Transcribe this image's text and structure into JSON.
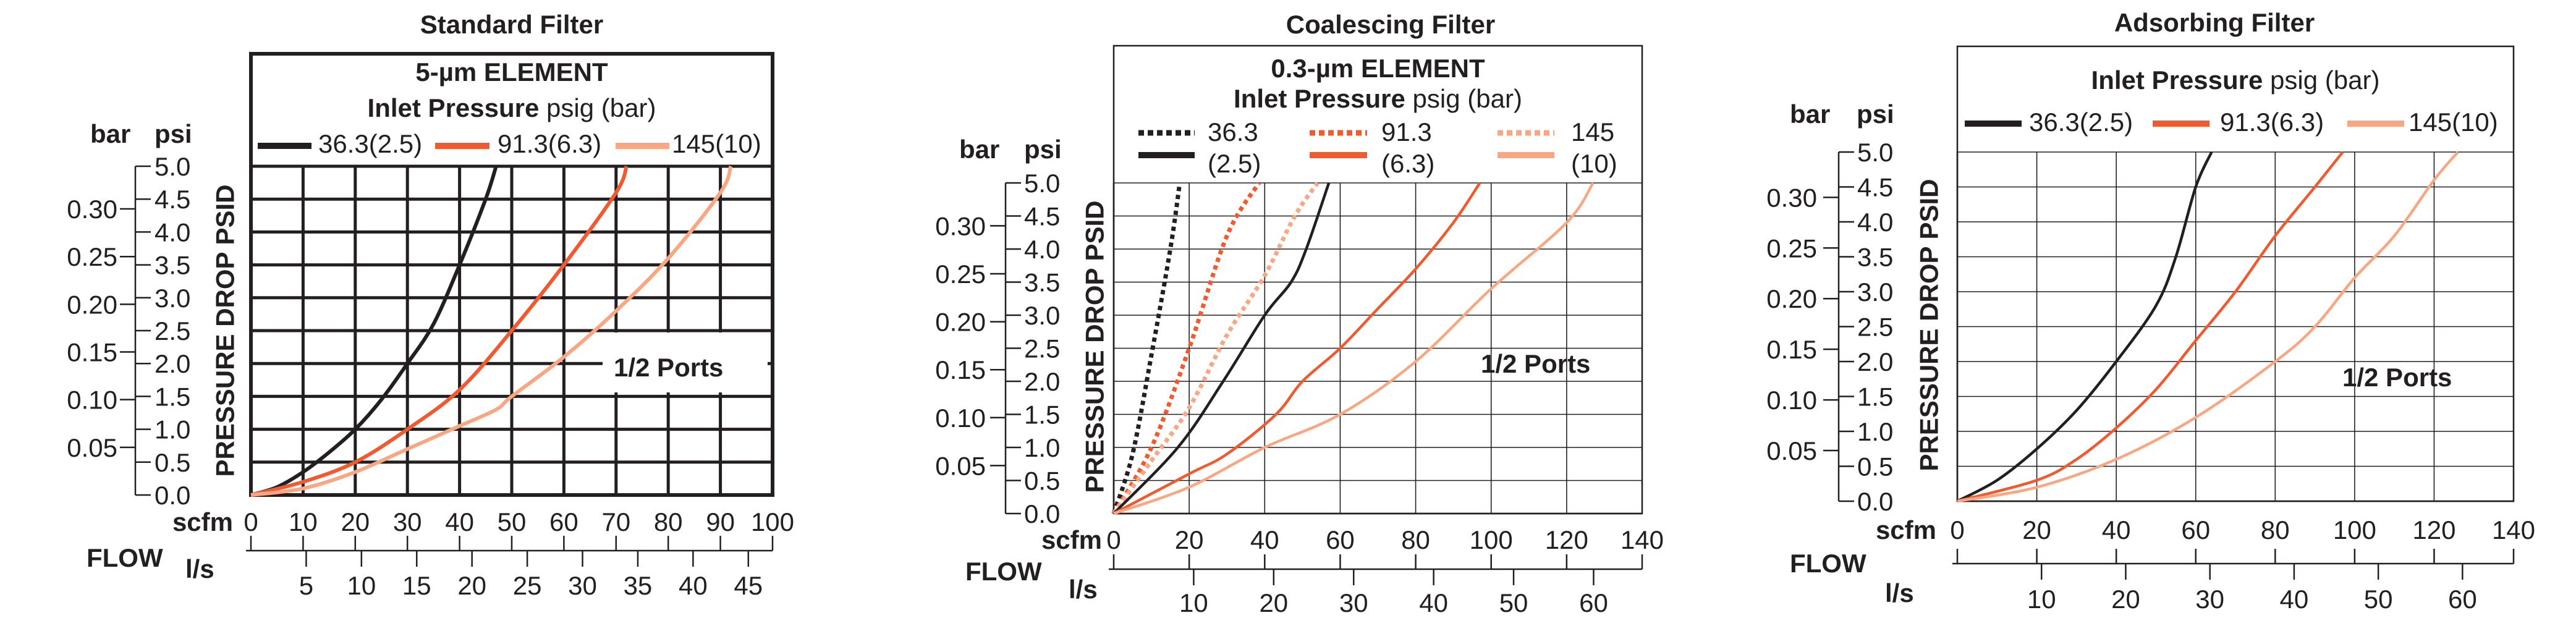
{
  "chart_data": [
    {
      "type": "line",
      "title": "Standard Filter",
      "element": "5-µm ELEMENT",
      "legend_title_bold": "Inlet Pressure",
      "legend_title_rest": "psig (bar)",
      "legend": [
        {
          "label": "36.3(2.5)",
          "color": "#231f20"
        },
        {
          "label": "91.3(6.3)",
          "color": "#f15a2f"
        },
        {
          "label": "145(10)",
          "color": "#f8a782"
        }
      ],
      "ylabel": "PRESSURE DROP PSID",
      "y_unit_primary": "psi",
      "y_unit_secondary": "bar",
      "xlabel": "FLOW",
      "x_unit_primary": "scfm",
      "x_unit_secondary": "l/s",
      "xlim": [
        0,
        100
      ],
      "ylim": [
        0,
        5
      ],
      "grid": true,
      "psi_ticks": [
        "0.0",
        "0.5",
        "1.0",
        "1.5",
        "2.0",
        "2.5",
        "3.0",
        "3.5",
        "4.0",
        "4.5",
        "5.0"
      ],
      "bar_ticks": [
        "0.05",
        "0.10",
        "0.15",
        "0.20",
        "0.25",
        "0.30"
      ],
      "scfm_ticks": [
        "0",
        "10",
        "20",
        "30",
        "40",
        "50",
        "60",
        "70",
        "80",
        "90",
        "100"
      ],
      "ls_ticks": [
        "5",
        "10",
        "15",
        "20",
        "25",
        "30",
        "35",
        "40",
        "45"
      ],
      "annotation": "1/2 Ports",
      "series": [
        {
          "legend": 0,
          "style": "solid",
          "x": [
            0,
            5,
            10,
            15,
            20,
            25,
            30,
            35,
            40,
            45,
            47
          ],
          "y": [
            0,
            0.12,
            0.35,
            0.65,
            1.0,
            1.45,
            2.0,
            2.6,
            3.5,
            4.5,
            5.0
          ]
        },
        {
          "legend": 1,
          "style": "solid",
          "x": [
            0,
            10,
            20,
            30,
            40,
            50,
            60,
            70,
            72
          ],
          "y": [
            0,
            0.2,
            0.5,
            1.0,
            1.6,
            2.5,
            3.5,
            4.6,
            5.0
          ]
        },
        {
          "legend": 2,
          "style": "solid",
          "x": [
            0,
            10,
            20,
            30,
            40,
            47,
            50,
            60,
            70,
            80,
            90,
            92
          ],
          "y": [
            0,
            0.1,
            0.35,
            0.7,
            1.05,
            1.3,
            1.5,
            2.1,
            2.8,
            3.6,
            4.6,
            5.0
          ]
        }
      ]
    },
    {
      "type": "line",
      "title": "Coalescing Filter",
      "element": "0.3-µm ELEMENT",
      "legend_title_bold": "Inlet Pressure",
      "legend_title_rest": "psig (bar)",
      "legend": [
        {
          "label_lines": [
            "36.3",
            "(2.5)"
          ],
          "color": "#231f20"
        },
        {
          "label_lines": [
            "91.3",
            "(6.3)"
          ],
          "color": "#f15a2f"
        },
        {
          "label_lines": [
            "145",
            "(10)"
          ],
          "color": "#f8a782"
        }
      ],
      "ylabel": "PRESSURE DROP PSID",
      "y_unit_primary": "psi",
      "y_unit_secondary": "bar",
      "xlabel": "FLOW",
      "x_unit_primary": "scfm",
      "x_unit_secondary": "l/s",
      "xlim": [
        0,
        140
      ],
      "ylim": [
        0,
        5
      ],
      "grid": true,
      "psi_ticks": [
        "0.0",
        "0.5",
        "1.0",
        "1.5",
        "2.0",
        "2.5",
        "3.0",
        "3.5",
        "4.0",
        "4.5",
        "5.0"
      ],
      "bar_ticks": [
        "0.05",
        "0.10",
        "0.15",
        "0.20",
        "0.25",
        "0.30"
      ],
      "scfm_ticks": [
        "0",
        "20",
        "40",
        "60",
        "80",
        "100",
        "120",
        "140"
      ],
      "ls_ticks": [
        "10",
        "20",
        "30",
        "40",
        "50",
        "60"
      ],
      "annotation": "1/2 Ports",
      "series": [
        {
          "legend": 0,
          "style": "dotted",
          "x": [
            0,
            5,
            10,
            15,
            17.5
          ],
          "y": [
            0,
            0.9,
            2.4,
            4.0,
            5.0
          ]
        },
        {
          "legend": 1,
          "style": "dotted",
          "x": [
            0,
            10,
            20,
            30,
            38.5
          ],
          "y": [
            0,
            1.0,
            2.5,
            4.2,
            5.0
          ]
        },
        {
          "legend": 2,
          "style": "dotted",
          "x": [
            0,
            10,
            20,
            30,
            40,
            48,
            54
          ],
          "y": [
            0,
            0.8,
            1.6,
            2.7,
            3.6,
            4.5,
            5.0
          ]
        },
        {
          "legend": 0,
          "style": "solid",
          "x": [
            0,
            17,
            29,
            40,
            47,
            51,
            57
          ],
          "y": [
            0,
            1.0,
            2.0,
            3.0,
            3.5,
            4.0,
            5.0
          ]
        },
        {
          "legend": 1,
          "style": "solid",
          "x": [
            0,
            20,
            30,
            43,
            50,
            60,
            70,
            80,
            90,
            97
          ],
          "y": [
            0,
            0.6,
            0.9,
            1.5,
            2.0,
            2.5,
            3.1,
            3.7,
            4.4,
            5.0
          ]
        },
        {
          "legend": 2,
          "style": "solid",
          "x": [
            0,
            20,
            40,
            60,
            80,
            100,
            120,
            127
          ],
          "y": [
            0,
            0.4,
            1.0,
            1.5,
            2.3,
            3.4,
            4.4,
            5.0
          ]
        }
      ]
    },
    {
      "type": "line",
      "title": "Adsorbing Filter",
      "legend_title_bold": "Inlet Pressure",
      "legend_title_rest": "psig (bar)",
      "legend": [
        {
          "label": "36.3(2.5)",
          "color": "#231f20"
        },
        {
          "label": "91.3(6.3)",
          "color": "#f15a2f"
        },
        {
          "label": "145(10)",
          "color": "#f8a782"
        }
      ],
      "ylabel": "PRESSURE DROP PSID",
      "y_unit_primary": "psi",
      "y_unit_secondary": "bar",
      "xlabel": "FLOW",
      "x_unit_primary": "scfm",
      "x_unit_secondary": "l/s",
      "xlim": [
        0,
        140
      ],
      "ylim": [
        0,
        5
      ],
      "grid": true,
      "psi_ticks": [
        "0.0",
        "0.5",
        "1.0",
        "1.5",
        "2.0",
        "2.5",
        "3.0",
        "3.5",
        "4.0",
        "4.5",
        "5.0"
      ],
      "bar_ticks": [
        "0.05",
        "0.10",
        "0.15",
        "0.20",
        "0.25",
        "0.30"
      ],
      "scfm_ticks": [
        "0",
        "20",
        "40",
        "60",
        "80",
        "100",
        "120",
        "140"
      ],
      "ls_ticks": [
        "10",
        "20",
        "30",
        "40",
        "50",
        "60"
      ],
      "annotation": "1/2 Ports",
      "series": [
        {
          "legend": 0,
          "style": "solid",
          "x": [
            0,
            10,
            20,
            30,
            40,
            50,
            55,
            60,
            64
          ],
          "y": [
            0,
            0.3,
            0.75,
            1.3,
            2.0,
            2.8,
            3.5,
            4.5,
            5.0
          ]
        },
        {
          "legend": 1,
          "style": "solid",
          "x": [
            0,
            20,
            30,
            40,
            50,
            60,
            70,
            80,
            90,
            97
          ],
          "y": [
            0,
            0.3,
            0.6,
            1.05,
            1.6,
            2.3,
            3.0,
            3.8,
            4.5,
            5.0
          ]
        },
        {
          "legend": 2,
          "style": "solid",
          "x": [
            0,
            20,
            40,
            60,
            80,
            90,
            100,
            110,
            120,
            126
          ],
          "y": [
            0,
            0.2,
            0.6,
            1.2,
            2.0,
            2.5,
            3.2,
            3.8,
            4.6,
            5.0
          ]
        }
      ]
    }
  ]
}
